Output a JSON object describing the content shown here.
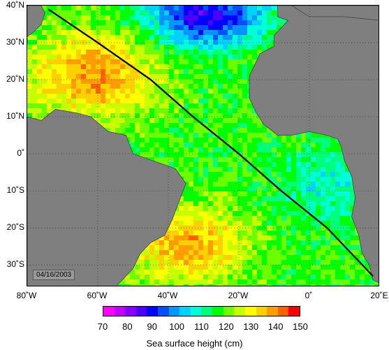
{
  "map": {
    "lat_labels": [
      "40˚N",
      "30˚N",
      "20˚N",
      "10˚N",
      "0˚",
      "10˚S",
      "20˚S",
      "30˚S"
    ],
    "lat_values": [
      40,
      30,
      20,
      10,
      0,
      -10,
      -20,
      -30
    ],
    "lon_labels": [
      "80˚W",
      "60˚W",
      "40˚W",
      "20˚W",
      "0˚",
      "20˚E"
    ],
    "lon_values": [
      -80,
      -60,
      -40,
      -20,
      0,
      20
    ],
    "extent": {
      "lon_min": -80,
      "lon_max": 20,
      "lat_min": -36,
      "lat_max": 40
    },
    "land_color": "#7f7f7f",
    "date": "04/16/2003",
    "track": {
      "description_points": [
        [
          -74,
          39
        ],
        [
          -60,
          30
        ],
        [
          -45,
          20
        ],
        [
          -33,
          10
        ],
        [
          -20,
          0
        ],
        [
          -8,
          -10
        ],
        [
          5,
          -20
        ],
        [
          18,
          -33
        ]
      ]
    }
  },
  "colorbar": {
    "ticks": [
      "70",
      "80",
      "90",
      "100",
      "110",
      "120",
      "130",
      "140",
      "150"
    ],
    "colors": [
      "#ff00ff",
      "#c400ff",
      "#8a00ff",
      "#4b00ff",
      "#0000ff",
      "#0050ff",
      "#0096ff",
      "#00d2ff",
      "#00ffd8",
      "#00ff7a",
      "#00ff00",
      "#6cff00",
      "#c8ff00",
      "#ffff00",
      "#ffd000",
      "#ff9c00",
      "#ff6000",
      "#ff0000"
    ],
    "label": "Sea surface height (cm)",
    "min": 70,
    "max": 150
  }
}
